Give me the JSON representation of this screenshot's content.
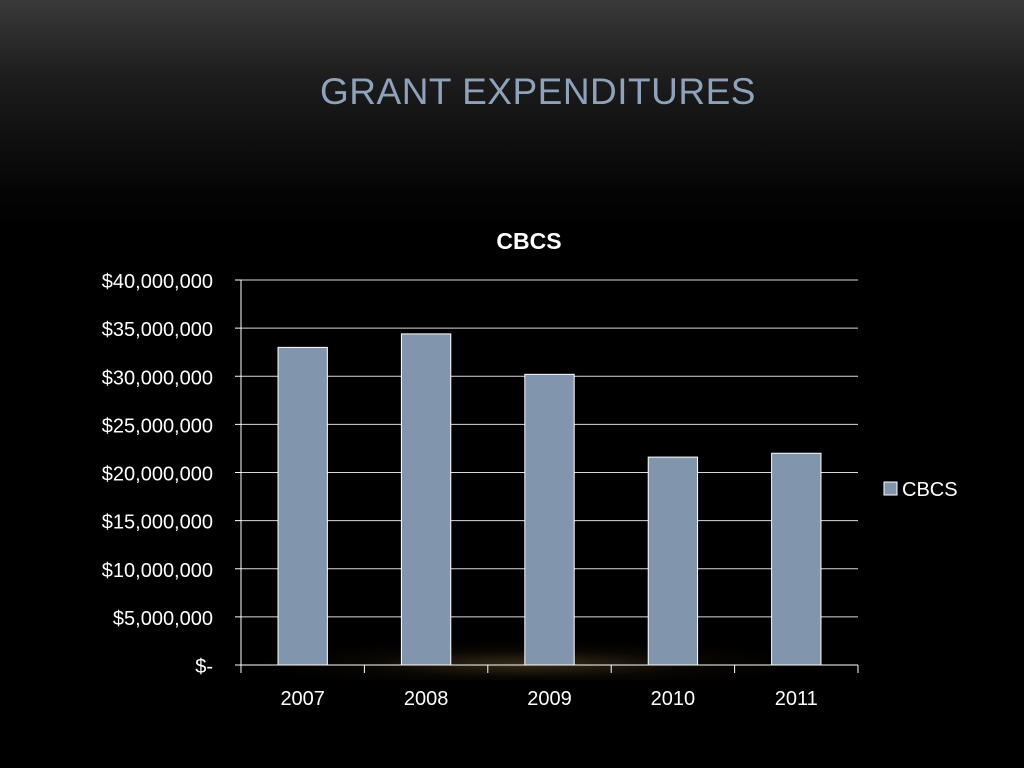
{
  "slide": {
    "title": "GRANT EXPENDITURES"
  },
  "chart_data": {
    "type": "bar",
    "title": "CBCS",
    "categories": [
      "2007",
      "2008",
      "2009",
      "2010",
      "2011"
    ],
    "series": [
      {
        "name": "CBCS",
        "values": [
          33000000,
          34400000,
          30200000,
          21600000,
          22000000
        ]
      }
    ],
    "y_tick_labels": [
      "$-",
      "$5,000,000",
      "$10,000,000",
      "$15,000,000",
      "$20,000,000",
      "$25,000,000",
      "$30,000,000",
      "$35,000,000",
      "$40,000,000"
    ],
    "ylim": [
      0,
      40000000
    ],
    "grid": true,
    "legend_position": "right",
    "colors": {
      "bar": "#8196ac",
      "bar_border": "#ffffff",
      "grid": "#ffffff",
      "text": "#ffffff"
    }
  }
}
